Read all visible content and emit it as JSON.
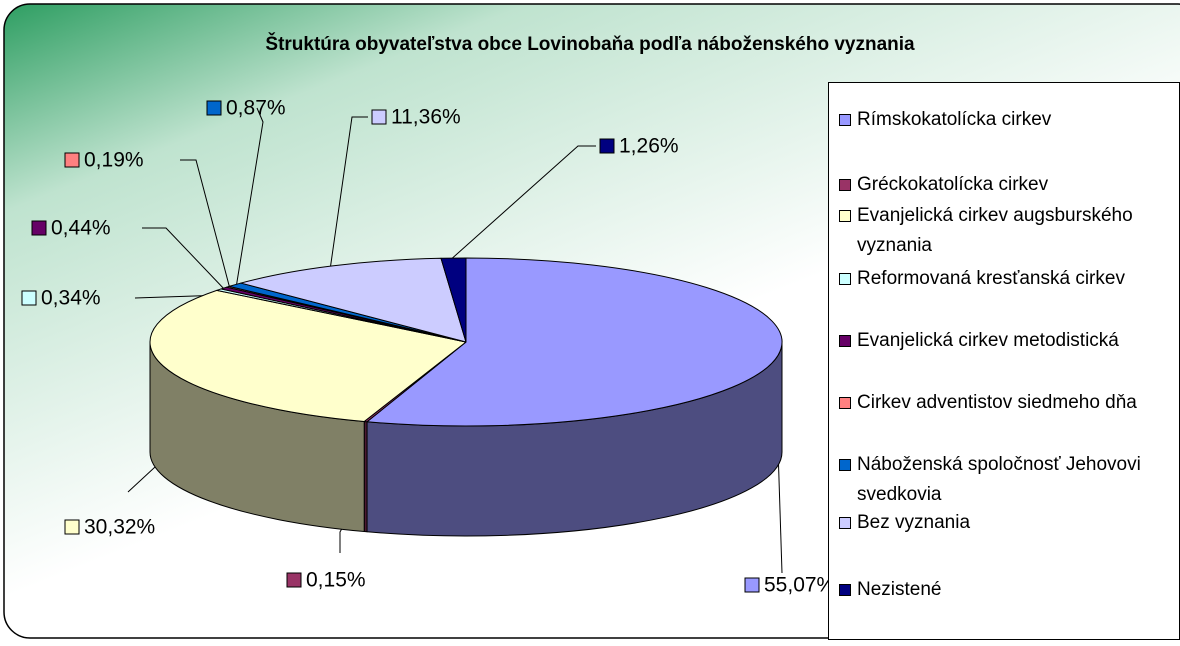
{
  "chart_data": {
    "type": "pie",
    "title": "Štruktúra obyvateľstva obce Lovinobaňa podľa náboženského vyznania",
    "categories": [
      "Rímskokatolícka cirkev",
      "Gréckokatolícka cirkev",
      "Evanjelická cirkev augsburského vyznania",
      "Reformovaná kresťanská cirkev",
      "Evanjelická cirkev metodistická",
      "Cirkev adventistov siedmeho dňa",
      "Náboženská spoločnosť Jehovovi svedkovia",
      "Bez vyznania",
      "Nezistené"
    ],
    "values": [
      55.07,
      0.15,
      30.32,
      0.34,
      0.44,
      0.19,
      0.87,
      11.36,
      1.26
    ],
    "value_labels": [
      "55,07%",
      "0,15%",
      "30,32%",
      "0,34%",
      "0,44%",
      "0,19%",
      "0,87%",
      "11,36%",
      "1,26%"
    ],
    "colors": [
      "#9999ff",
      "#993366",
      "#ffffcc",
      "#ccffff",
      "#660066",
      "#ff8080",
      "#0066cc",
      "#ccccff",
      "#000080"
    ],
    "legend": "right"
  }
}
